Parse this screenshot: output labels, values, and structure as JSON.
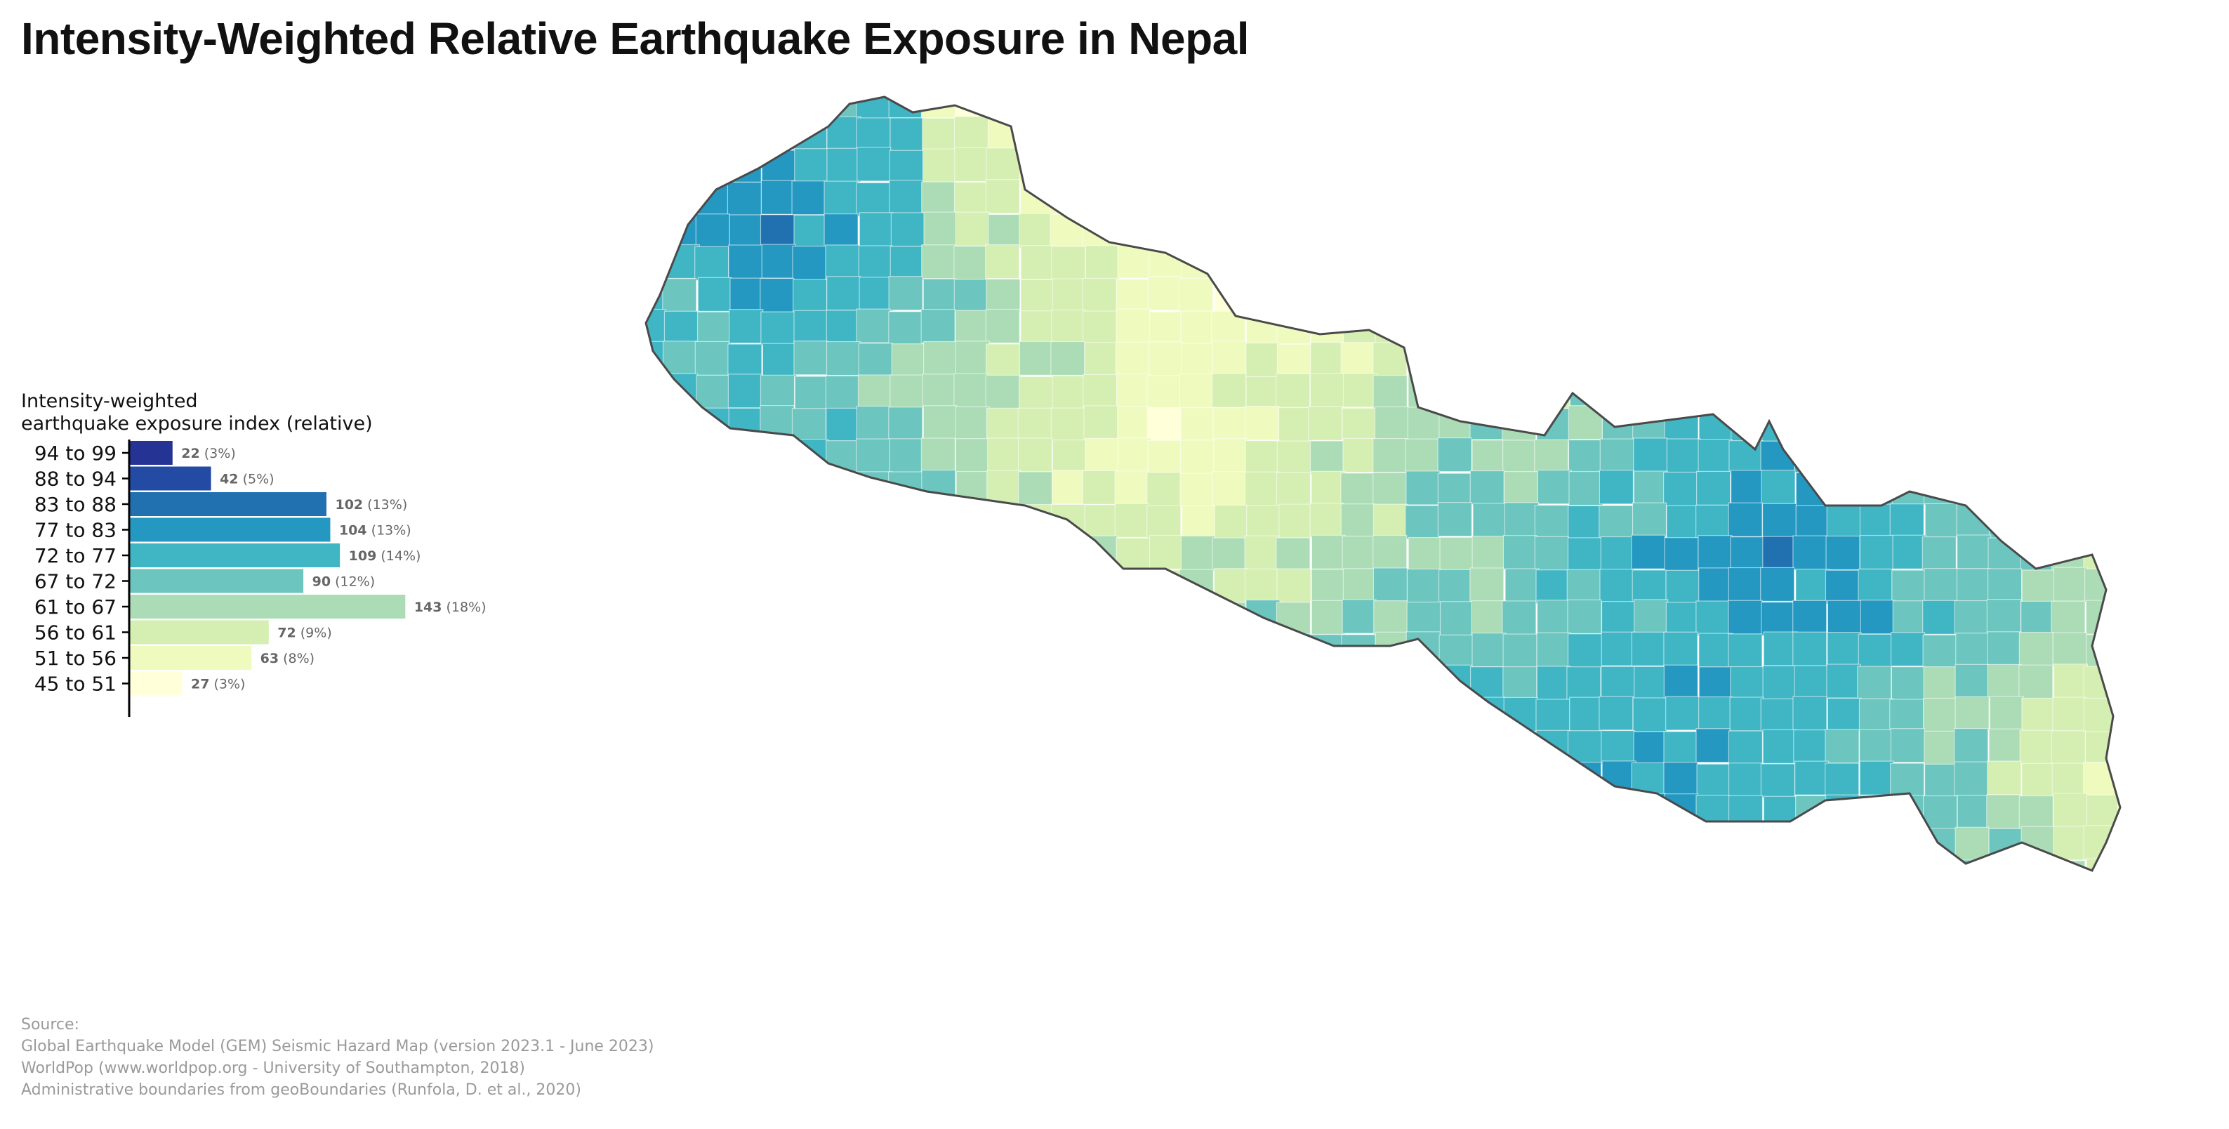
{
  "title": "Intensity-Weighted Relative Earthquake Exposure in Nepal",
  "legend": {
    "title_line1": "Intensity-weighted",
    "title_line2": "earthquake exposure index (relative)",
    "classes": [
      {
        "label": "94 to 99",
        "count": 22,
        "pct": "(3%)",
        "color": "#253494"
      },
      {
        "label": "88 to 94",
        "count": 42,
        "pct": "(5%)",
        "color": "#234ba3"
      },
      {
        "label": "83 to 88",
        "count": 102,
        "pct": "(13%)",
        "color": "#2170b0"
      },
      {
        "label": "77 to 83",
        "count": 104,
        "pct": "(13%)",
        "color": "#2498c1"
      },
      {
        "label": "72 to 77",
        "count": 109,
        "pct": "(14%)",
        "color": "#40b5c4"
      },
      {
        "label": "67 to 72",
        "count": 90,
        "pct": "(12%)",
        "color": "#6cc5be"
      },
      {
        "label": "61 to 67",
        "count": 143,
        "pct": "(18%)",
        "color": "#abdcb6"
      },
      {
        "label": "56 to 61",
        "count": 72,
        "pct": "(9%)",
        "color": "#d5eeb2"
      },
      {
        "label": "51 to 56",
        "count": 63,
        "pct": "(8%)",
        "color": "#effabf"
      },
      {
        "label": "45 to 51",
        "count": 27,
        "pct": "(3%)",
        "color": "#ffffd9"
      }
    ]
  },
  "source": {
    "heading": "Source:",
    "lines": [
      "Global Earthquake Model (GEM) Seismic Hazard Map (version 2023.1 - June 2023)",
      "WorldPop (www.worldpop.org - University of Southampton, 2018)",
      "Administrative boundaries from geoBoundaries (Runfola, D. et al., 2020)"
    ]
  }
}
